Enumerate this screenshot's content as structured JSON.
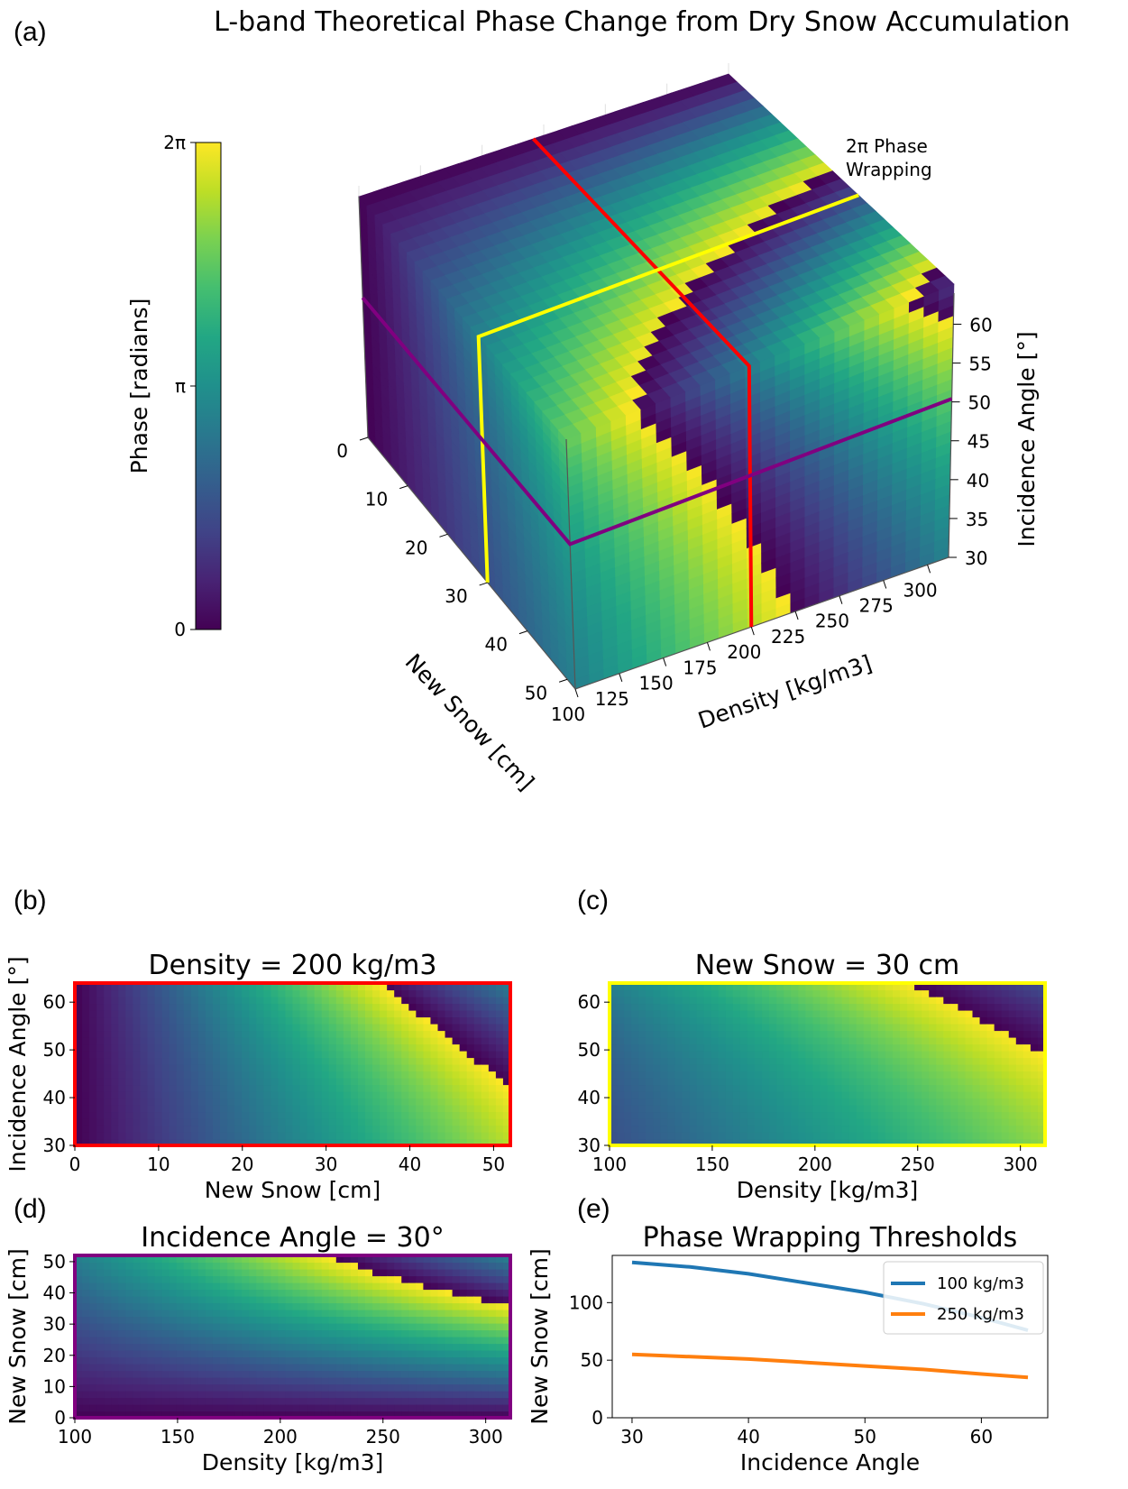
{
  "figure_title": "L-band Theoretical Phase Change from Dry Snow Accumulation",
  "panels": {
    "a": "(a)",
    "b": "(b)",
    "c": "(c)",
    "d": "(d)",
    "e": "(e)"
  },
  "colors": {
    "slice_density": "#ff0000",
    "slice_new_snow": "#ffff00",
    "slice_incidence": "#800080",
    "line_100": "#1f77b4",
    "line_250": "#ff7f0e",
    "colormap": "viridis"
  },
  "chart_data": [
    {
      "type": "heatmap",
      "panel": "(a)",
      "title": "L-band Theoretical Phase Change from Dry Snow Accumulation",
      "xlabel": "New Snow [cm]",
      "ylabel": "Density [kg/m3]",
      "zlabel": "Incidence Angle [°]",
      "x_ticks": [
        "0",
        "10",
        "20",
        "30",
        "40",
        "50"
      ],
      "y_ticks": [
        "100",
        "125",
        "150",
        "175",
        "200",
        "225",
        "250",
        "275",
        "300"
      ],
      "z_ticks": [
        "30",
        "35",
        "40",
        "45",
        "50",
        "55",
        "60"
      ],
      "xlim": [
        0,
        52
      ],
      "ylim": [
        100,
        312
      ],
      "zlim": [
        30,
        64
      ],
      "colorbar": {
        "label": "Phase [radians]",
        "ticks": [
          "0",
          "π",
          "2π"
        ],
        "range": [
          0,
          6.283
        ]
      },
      "annotation": "2π Phase Wrapping",
      "slices": [
        {
          "name": "Density = 200 kg/m3",
          "color": "#ff0000"
        },
        {
          "name": "New Snow = 30 cm",
          "color": "#ffff00"
        },
        {
          "name": "Incidence Angle = 30°",
          "color": "#800080"
        }
      ]
    },
    {
      "type": "heatmap",
      "panel": "(b)",
      "title": "Density = 200 kg/m3",
      "xlabel": "New Snow [cm]",
      "ylabel": "Incidence Angle [°]",
      "xlim": [
        0,
        52
      ],
      "ylim": [
        30,
        64
      ],
      "x_ticks": [
        0,
        10,
        20,
        30,
        40,
        50
      ],
      "y_ticks": [
        30,
        40,
        50,
        60
      ],
      "fixed_density": 200,
      "border_color": "#ff0000"
    },
    {
      "type": "heatmap",
      "panel": "(c)",
      "title": "New Snow = 30 cm",
      "xlabel": "Density [kg/m3]",
      "ylabel": "",
      "xlim": [
        100,
        312
      ],
      "ylim": [
        30,
        64
      ],
      "x_ticks": [
        100,
        150,
        200,
        250,
        300
      ],
      "y_ticks": [
        30,
        40,
        50,
        60
      ],
      "fixed_new_snow": 30,
      "border_color": "#ffff00"
    },
    {
      "type": "heatmap",
      "panel": "(d)",
      "title": "Incidence Angle = 30°",
      "xlabel": "Density [kg/m3]",
      "ylabel": "New Snow [cm]",
      "xlim": [
        100,
        312
      ],
      "ylim": [
        0,
        52
      ],
      "x_ticks": [
        100,
        150,
        200,
        250,
        300
      ],
      "y_ticks": [
        0,
        10,
        20,
        30,
        40,
        50
      ],
      "fixed_incidence": 30,
      "border_color": "#800080"
    },
    {
      "type": "line",
      "panel": "(e)",
      "title": "Phase Wrapping Thresholds",
      "xlabel": "Incidence Angle",
      "ylabel": "New Snow [cm]",
      "xlim": [
        28.3,
        65.7
      ],
      "ylim": [
        0,
        141
      ],
      "x_ticks": [
        30,
        40,
        50,
        60
      ],
      "y_ticks": [
        0,
        50,
        100
      ],
      "legend": "top-right",
      "series": [
        {
          "name": "100 kg/m3",
          "color": "#1f77b4",
          "x": [
            30,
            35,
            40,
            45,
            50,
            55,
            60,
            64
          ],
          "y": [
            135,
            131,
            125,
            117,
            109,
            99,
            87,
            76
          ]
        },
        {
          "name": "250 kg/m3",
          "color": "#ff7f0e",
          "x": [
            30,
            35,
            40,
            45,
            50,
            55,
            60,
            64
          ],
          "y": [
            55,
            53,
            51,
            48,
            45,
            42,
            38,
            35
          ]
        }
      ]
    }
  ]
}
